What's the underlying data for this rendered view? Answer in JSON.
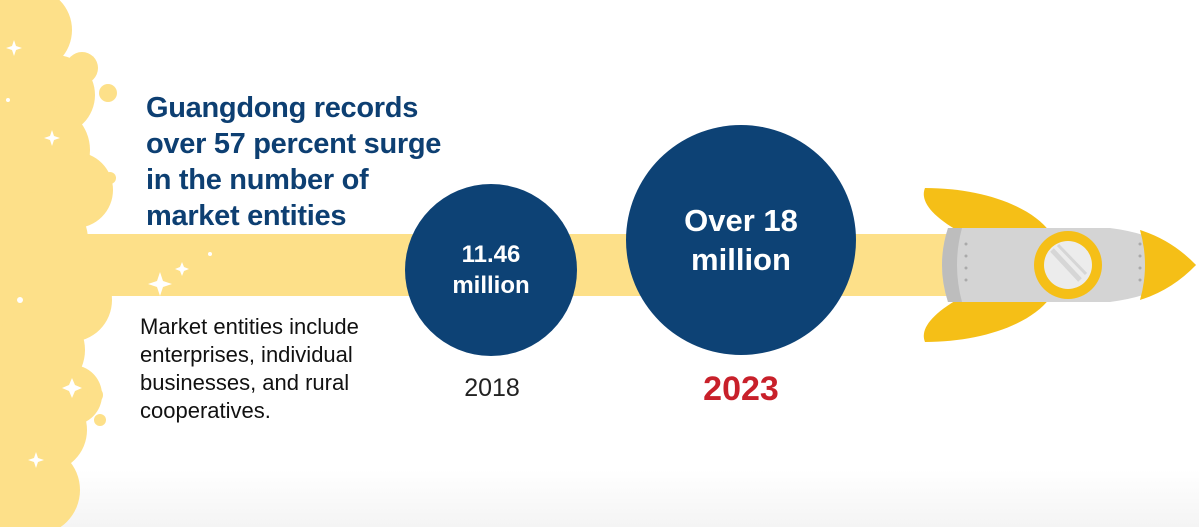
{
  "headline": {
    "lines": [
      "Guangdong records",
      "over 57 percent surge",
      "in the number of",
      "market entities"
    ]
  },
  "description": {
    "lines": [
      "Market entities include",
      "enterprises, individual",
      "businesses, and rural",
      "cooperatives."
    ]
  },
  "milestones": [
    {
      "value_lines": [
        "11.46",
        "million"
      ],
      "year": "2018"
    },
    {
      "value_lines": [
        "Over 18",
        "million"
      ],
      "year": "2023"
    }
  ],
  "colors": {
    "navy": "#0d4275",
    "headline": "#0d3f72",
    "highlight_year": "#c8202a",
    "exhaust": "#fde089",
    "rocket_fin": "#f5bf17",
    "rocket_body": "#d4d4d4"
  },
  "icons": [
    "rocket-icon",
    "sparkle-icon",
    "exhaust-cloud-icon"
  ]
}
